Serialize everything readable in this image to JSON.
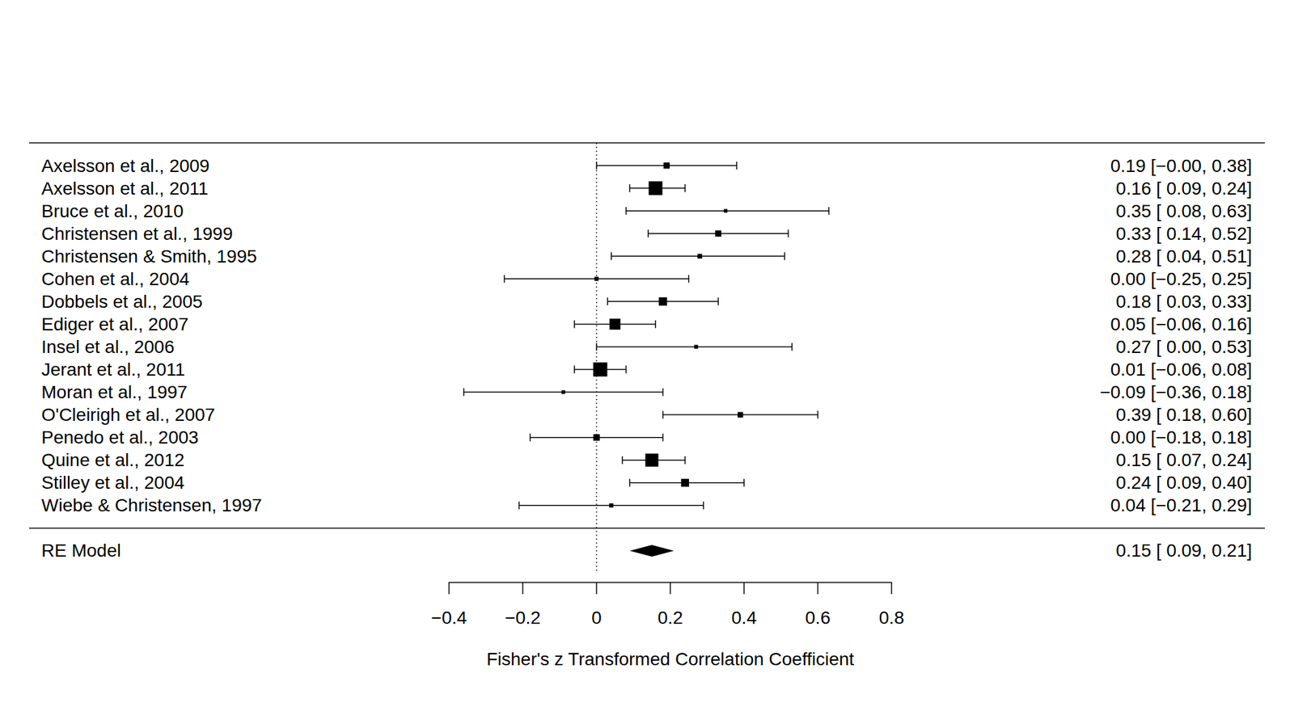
{
  "chart_data": {
    "type": "forest",
    "x_label": "Fisher's z Transformed Correlation Coefficient",
    "categories": [
      "Axelsson et al., 2009",
      "Axelsson et al., 2011",
      "Bruce et al., 2010",
      "Christensen et al., 1999",
      "Christensen & Smith, 1995",
      "Cohen et al., 2004",
      "Dobbels et al., 2005",
      "Ediger et al., 2007",
      "Insel et al., 2006",
      "Jerant et al., 2011",
      "Moran et al., 1997",
      "O'Cleirigh et al., 2007",
      "Penedo et al., 2003",
      "Quine et al., 2012",
      "Stilley et al., 2004",
      "Wiebe & Christensen, 1997"
    ],
    "values": [
      0.19,
      0.16,
      0.35,
      0.33,
      0.28,
      0.0,
      0.18,
      0.05,
      0.27,
      0.01,
      -0.09,
      0.39,
      0.0,
      0.15,
      0.24,
      0.04
    ],
    "ci_lower": [
      0.0,
      0.09,
      0.08,
      0.14,
      0.04,
      -0.25,
      0.03,
      -0.06,
      0.0,
      -0.06,
      -0.36,
      0.18,
      -0.18,
      0.07,
      0.09,
      -0.21
    ],
    "ci_upper": [
      0.38,
      0.24,
      0.63,
      0.52,
      0.51,
      0.25,
      0.33,
      0.16,
      0.53,
      0.08,
      0.18,
      0.6,
      0.18,
      0.24,
      0.4,
      0.29
    ],
    "weights": [
      5.3,
      11.8,
      3.1,
      5.3,
      4.0,
      3.6,
      7.0,
      9.4,
      3.3,
      12.1,
      3.2,
      4.7,
      5.6,
      11.2,
      6.8,
      3.6
    ],
    "value_labels": [
      "0.19 [−0.00, 0.38]",
      "0.16 [ 0.09, 0.24]",
      "0.35 [ 0.08, 0.63]",
      "0.33 [ 0.14, 0.52]",
      "0.28 [ 0.04, 0.51]",
      "0.00 [−0.25, 0.25]",
      "0.18 [ 0.03, 0.33]",
      "0.05 [−0.06, 0.16]",
      "0.27 [ 0.00, 0.53]",
      "0.01 [−0.06, 0.08]",
      "−0.09 [−0.36, 0.18]",
      "0.39 [ 0.18, 0.60]",
      "0.00 [−0.18, 0.18]",
      "0.15 [ 0.07, 0.24]",
      "0.24 [ 0.09, 0.40]",
      "0.04 [−0.21, 0.29]"
    ],
    "summary": {
      "label": "RE Model",
      "value": 0.15,
      "ci_lower": 0.09,
      "ci_upper": 0.21,
      "value_label": "0.15 [ 0.09, 0.21]"
    },
    "reference_line": 0,
    "xlim": [
      -0.4,
      0.8
    ],
    "xticks": [
      {
        "value": -0.4,
        "label": "−0.4"
      },
      {
        "value": -0.2,
        "label": "−0.2"
      },
      0,
      0.2,
      0.4,
      0.6,
      0.8
    ],
    "color": "#000000",
    "marker": "square",
    "grid": false
  }
}
